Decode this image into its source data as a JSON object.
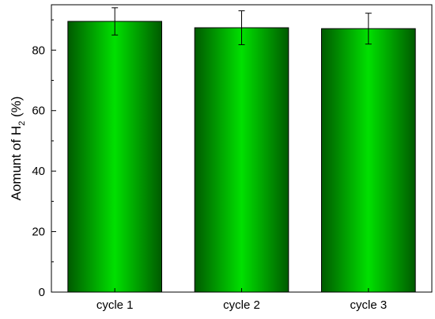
{
  "chart_data": {
    "type": "bar",
    "categories": [
      "cycle 1",
      "cycle 2",
      "cycle 3"
    ],
    "values": [
      89.5,
      87.4,
      87.1
    ],
    "errors": [
      4.5,
      5.6,
      5.1
    ],
    "title": "",
    "xlabel": "",
    "ylabel": {
      "prefix": "Aomunt of H",
      "subscript": "2",
      "suffix": " (%)"
    },
    "ylim": [
      0,
      95
    ],
    "yticks": [
      0,
      20,
      40,
      60,
      80
    ],
    "grid": false,
    "bar_color": "#00e000",
    "bar_dark_color": "#005a00"
  }
}
